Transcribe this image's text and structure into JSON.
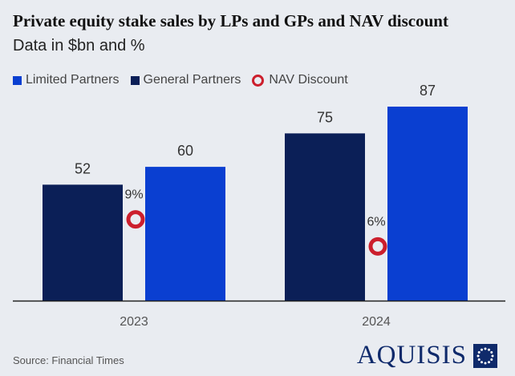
{
  "title": "Private equity stake sales by LPs and GPs and NAV discount",
  "subtitle": "Data in $bn and %",
  "legend": [
    {
      "label": "Limited Partners",
      "color": "#0a3fd1",
      "shape": "square"
    },
    {
      "label": "General Partners",
      "color": "#0b1f57",
      "shape": "square"
    },
    {
      "label": "NAV Discount",
      "color": "#cc1f2d",
      "shape": "ring"
    }
  ],
  "source": "Source: Financial Times",
  "brand": "AQUISIS",
  "chart_data": {
    "type": "bar",
    "categories": [
      "2023",
      "2024"
    ],
    "series": [
      {
        "name": "General Partners",
        "values": [
          52,
          75
        ],
        "labels": [
          "52",
          "75"
        ],
        "color": "#0b1f57"
      },
      {
        "name": "Limited Partners",
        "values": [
          60,
          87
        ],
        "labels": [
          "60",
          "87"
        ],
        "color": "#0a3fd1"
      }
    ],
    "nav_discount": {
      "name": "NAV Discount",
      "values": [
        9,
        6
      ],
      "labels": [
        "9%",
        "6%"
      ],
      "color": "#cc1f2d"
    },
    "ylim": [
      0,
      87
    ],
    "grid": false,
    "legend_position": "top-left"
  }
}
